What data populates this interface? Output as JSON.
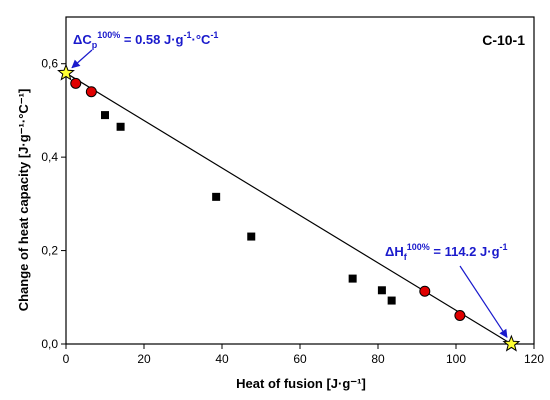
{
  "chart_data": {
    "type": "scatter",
    "panel_label": "C-10-1",
    "xlabel": "Heat of fusion [J·g⁻¹]",
    "ylabel": "Change of heat capacity [J·g⁻¹·°C⁻¹]",
    "xlim": [
      0,
      120
    ],
    "ylim": [
      0,
      0.7
    ],
    "x_ticks": [
      "0",
      "20",
      "40",
      "60",
      "80",
      "100",
      "120"
    ],
    "y_ticks": [
      "0,0",
      "0,2",
      "0,4",
      "0,6"
    ],
    "series": [
      {
        "marker": "square",
        "color": "#000000",
        "points": [
          {
            "x": 10,
            "y": 0.49
          },
          {
            "x": 14,
            "y": 0.465
          },
          {
            "x": 38.5,
            "y": 0.315
          },
          {
            "x": 47.5,
            "y": 0.23
          },
          {
            "x": 73.5,
            "y": 0.14
          },
          {
            "x": 81,
            "y": 0.115
          },
          {
            "x": 83.5,
            "y": 0.093
          }
        ]
      },
      {
        "marker": "circle",
        "color": "#e00000",
        "points": [
          {
            "x": 2.5,
            "y": 0.558
          },
          {
            "x": 6.5,
            "y": 0.54
          },
          {
            "x": 92,
            "y": 0.113
          },
          {
            "x": 101,
            "y": 0.061
          }
        ]
      },
      {
        "marker": "star",
        "color": "#ffff33",
        "points": [
          {
            "x": 0,
            "y": 0.58
          },
          {
            "x": 114.2,
            "y": 0
          }
        ]
      }
    ],
    "fit_line": {
      "x": [
        0,
        114.2
      ],
      "y": [
        0.58,
        0
      ]
    },
    "annotations": [
      {
        "id": "cp",
        "prefix": "ΔC",
        "sub": "p",
        "sup": "100%",
        "value": " = 0.58 J·g",
        "unit_sup": "-1",
        "unit_mid": "·°C",
        "unit_sup2": "-1",
        "arrow_to": {
          "x": 0,
          "y": 0.58
        }
      },
      {
        "id": "hf",
        "prefix": "ΔH",
        "sub": "f",
        "sup": "100%",
        "value": " = 114.2 J·g",
        "unit_sup": "-1",
        "arrow_to": {
          "x": 114.2,
          "y": 0
        }
      }
    ],
    "grid": false,
    "legend": "none"
  }
}
